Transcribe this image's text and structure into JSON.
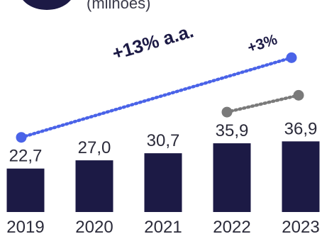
{
  "chart_data": {
    "type": "bar",
    "unit_label": "(milhões)",
    "categories": [
      "2019",
      "2020",
      "2021",
      "2022",
      "2023"
    ],
    "values": [
      22.7,
      27.0,
      30.7,
      35.9,
      36.9
    ],
    "value_labels": [
      "22,7",
      "27,0",
      "30,7",
      "35,9",
      "36,9"
    ],
    "ylim": [
      0,
      60
    ],
    "annotations": [
      {
        "text": "+13% a.a.",
        "from": "2019",
        "to": "2023"
      },
      {
        "text": "+3%",
        "from": "2022",
        "to": "2023"
      }
    ]
  },
  "colors": {
    "bar": "#1c1a45",
    "cagr_line": "#4a63e8",
    "yoy_line": "#7a7a7a",
    "text": "#2b2b3a",
    "annotation_text": "#1c1a45"
  }
}
